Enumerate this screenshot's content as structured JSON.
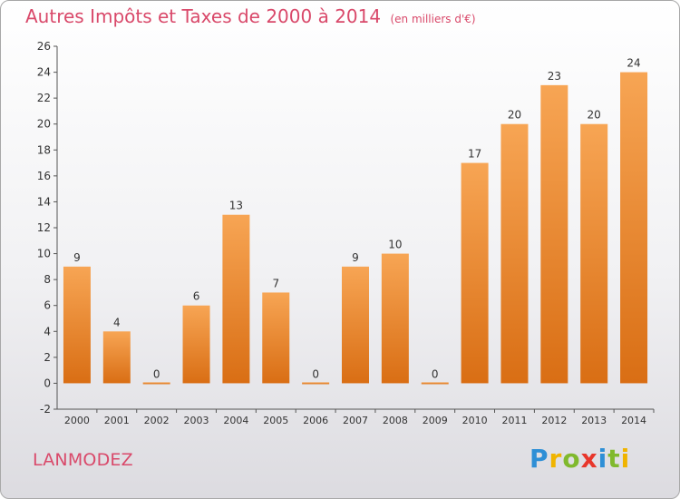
{
  "header": {
    "title": "Autres Impôts et Taxes de 2000 à 2014",
    "unit_note": "(en milliers d'€)"
  },
  "footer": {
    "commune": "LANMODEZ",
    "logo_text": "Proxiti"
  },
  "colors": {
    "title": "#d9496a",
    "bar_top": "#f7a554",
    "bar_bottom": "#d96e14",
    "axis": "#555555"
  },
  "chart_data": {
    "type": "bar",
    "title": "Autres Impôts et Taxes de 2000 à 2014",
    "categories": [
      "2000",
      "2001",
      "2002",
      "2003",
      "2004",
      "2005",
      "2006",
      "2007",
      "2008",
      "2009",
      "2010",
      "2011",
      "2012",
      "2013",
      "2014"
    ],
    "values": [
      9,
      4,
      0,
      6,
      13,
      7,
      0,
      9,
      10,
      0,
      17,
      20,
      23,
      20,
      24
    ],
    "value_labels": [
      "9",
      "4",
      "0",
      "6",
      "13",
      "7",
      "0",
      "9",
      "10",
      "0",
      "17",
      "20",
      "23",
      "20",
      "24"
    ],
    "ylim": [
      -2,
      26
    ],
    "yticks": [
      -2,
      0,
      2,
      4,
      6,
      8,
      10,
      12,
      14,
      16,
      18,
      20,
      22,
      24,
      26
    ],
    "grid": false,
    "xlabel": "",
    "ylabel": ""
  }
}
